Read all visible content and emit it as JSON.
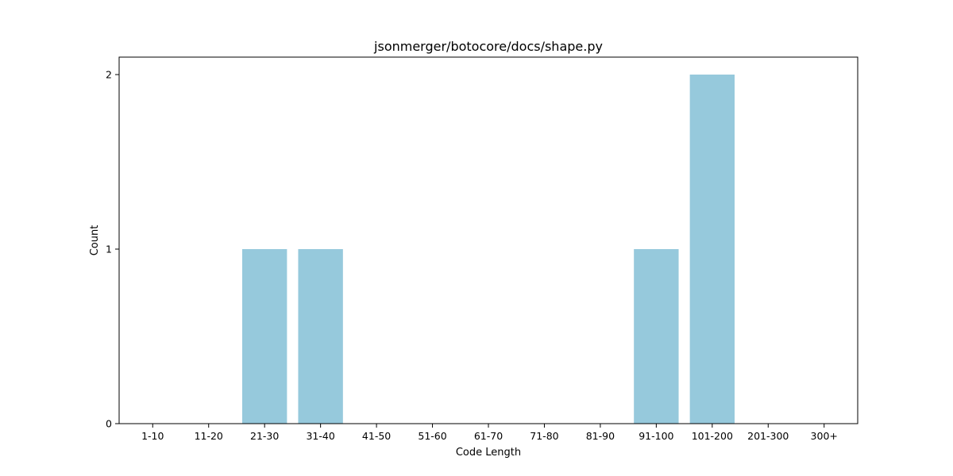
{
  "chart_data": {
    "type": "bar",
    "title": "jsonmerger/botocore/docs/shape.py",
    "xlabel": "Code Length",
    "ylabel": "Count",
    "categories": [
      "1-10",
      "11-20",
      "21-30",
      "31-40",
      "41-50",
      "51-60",
      "61-70",
      "71-80",
      "81-90",
      "91-100",
      "101-200",
      "201-300",
      "300+"
    ],
    "values": [
      0,
      0,
      1,
      1,
      0,
      0,
      0,
      0,
      0,
      1,
      2,
      0,
      0
    ],
    "ylim": [
      0,
      2.1
    ],
    "yticks": [
      0,
      1,
      2
    ],
    "bar_color": "#96c9dc",
    "grid": false
  }
}
